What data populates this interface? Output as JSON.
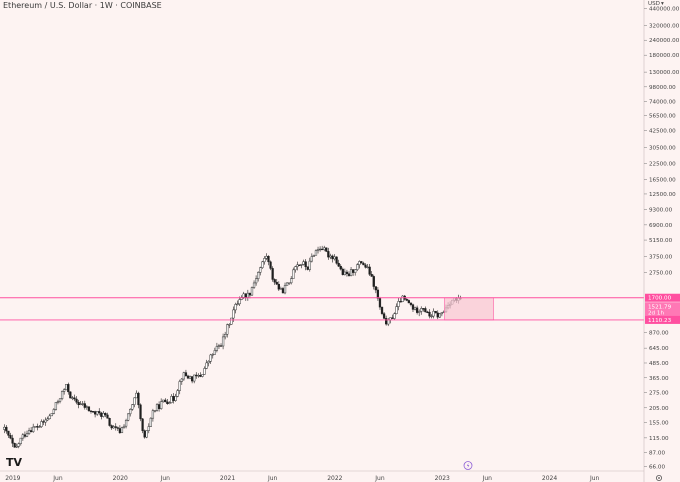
{
  "chart_data": {
    "type": "candlestick",
    "title": "Ethereum / U.S. Dollar · 1W · COINBASE",
    "currency_label": "USD",
    "scale": "log",
    "ylim": [
      62,
      520000
    ],
    "y_ticks": [
      66,
      87,
      115,
      155,
      205,
      275,
      365,
      485,
      645,
      870,
      1110,
      1700,
      2750,
      3750,
      5150,
      6900,
      9300,
      12500,
      16500,
      22500,
      30500,
      42500,
      56500,
      74000,
      98000,
      130000,
      180000,
      240000,
      320000,
      440000
    ],
    "y_tick_labels": [
      "66.00",
      "87.00",
      "115.00",
      "155.00",
      "205.00",
      "275.00",
      "365.00",
      "485.00",
      "645.00",
      "870.00",
      "1110.00",
      "1700.00",
      "2750.00",
      "3750.00",
      "5150.00",
      "6900.00",
      "9300.00",
      "12500.00",
      "16500.00",
      "22500.00",
      "30500.00",
      "42500.00",
      "56500.00",
      "74000.00",
      "98000.00",
      "130000.00",
      "180000.00",
      "240000.00",
      "320000.00",
      "440000.00"
    ],
    "x_ticks": [
      {
        "label": "2019",
        "t": 2019.0
      },
      {
        "label": "Jun",
        "t": 2019.42
      },
      {
        "label": "2020",
        "t": 2020.0
      },
      {
        "label": "Jun",
        "t": 2020.42
      },
      {
        "label": "2021",
        "t": 2021.0
      },
      {
        "label": "Jun",
        "t": 2021.42
      },
      {
        "label": "2022",
        "t": 2022.0
      },
      {
        "label": "Jun",
        "t": 2022.42
      },
      {
        "label": "2023",
        "t": 2023.0
      },
      {
        "label": "Jun",
        "t": 2023.42
      },
      {
        "label": "2024",
        "t": 2024.0
      },
      {
        "label": "Jun",
        "t": 2024.42
      }
    ],
    "xlim": [
      2018.88,
      2024.88
    ],
    "price_anchors": [
      [
        2018.92,
        135
      ],
      [
        2018.97,
        115
      ],
      [
        2019.02,
        90
      ],
      [
        2019.08,
        115
      ],
      [
        2019.15,
        135
      ],
      [
        2019.25,
        145
      ],
      [
        2019.35,
        175
      ],
      [
        2019.45,
        265
      ],
      [
        2019.5,
        310
      ],
      [
        2019.55,
        240
      ],
      [
        2019.65,
        215
      ],
      [
        2019.75,
        185
      ],
      [
        2019.85,
        180
      ],
      [
        2019.92,
        140
      ],
      [
        2020.0,
        130
      ],
      [
        2020.08,
        180
      ],
      [
        2020.15,
        265
      ],
      [
        2020.2,
        140
      ],
      [
        2020.23,
        110
      ],
      [
        2020.3,
        190
      ],
      [
        2020.4,
        230
      ],
      [
        2020.5,
        245
      ],
      [
        2020.58,
        390
      ],
      [
        2020.67,
        360
      ],
      [
        2020.75,
        380
      ],
      [
        2020.85,
        560
      ],
      [
        2020.95,
        730
      ],
      [
        2021.05,
        1300
      ],
      [
        2021.12,
        1750
      ],
      [
        2021.2,
        1820
      ],
      [
        2021.28,
        2700
      ],
      [
        2021.36,
        3900
      ],
      [
        2021.42,
        2500
      ],
      [
        2021.5,
        1900
      ],
      [
        2021.58,
        2300
      ],
      [
        2021.62,
        3200
      ],
      [
        2021.7,
        3300
      ],
      [
        2021.75,
        3000
      ],
      [
        2021.8,
        4000
      ],
      [
        2021.87,
        4550
      ],
      [
        2021.93,
        3900
      ],
      [
        2022.0,
        3700
      ],
      [
        2022.07,
        2700
      ],
      [
        2022.12,
        2600
      ],
      [
        2022.2,
        3100
      ],
      [
        2022.25,
        3400
      ],
      [
        2022.32,
        2800
      ],
      [
        2022.38,
        1950
      ],
      [
        2022.45,
        1100
      ],
      [
        2022.5,
        1050
      ],
      [
        2022.55,
        1250
      ],
      [
        2022.62,
        1700
      ],
      [
        2022.7,
        1500
      ],
      [
        2022.75,
        1320
      ],
      [
        2022.82,
        1450
      ],
      [
        2022.87,
        1200
      ],
      [
        2022.92,
        1250
      ],
      [
        2022.97,
        1200
      ],
      [
        2023.02,
        1320
      ],
      [
        2023.06,
        1550
      ],
      [
        2023.1,
        1650
      ],
      [
        2023.15,
        1600
      ],
      [
        2023.18,
        1700
      ]
    ],
    "horizontal_lines": [
      {
        "price": 1700,
        "label": "1700.00",
        "color": "#ff4fa0"
      },
      {
        "price": 1110,
        "label": "1110.23",
        "color": "#ff4fa0"
      }
    ],
    "current_price_label": "1521.79",
    "countdown_label": "2d 1h",
    "range_box": {
      "t_start": 2023.02,
      "t_end": 2023.48,
      "price_low": 1110,
      "price_high": 1700,
      "fill": "#f8c4d2"
    },
    "candle_color": "#1f1f1f",
    "line_color": "#ff4fa0",
    "background_color": "#fdf3f2"
  }
}
